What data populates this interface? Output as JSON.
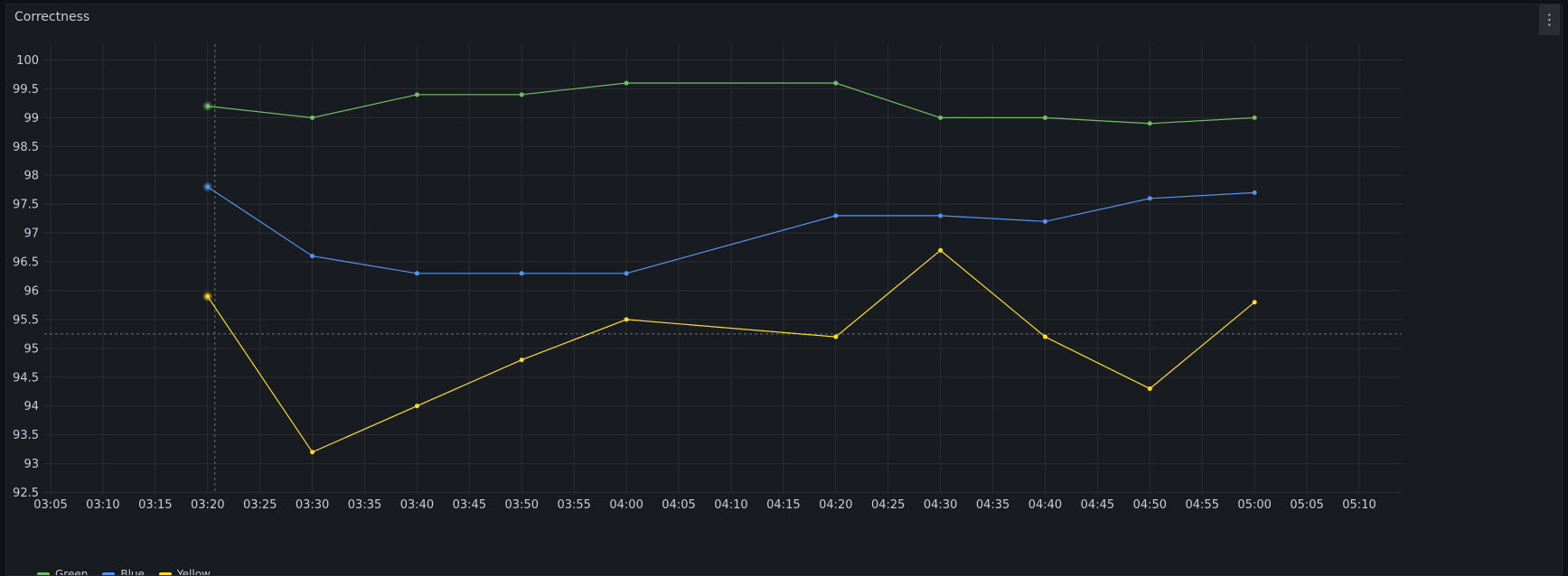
{
  "panel": {
    "title": "Correctness",
    "menu_icon": "kebab-menu-icon",
    "menu_glyph": "⋮"
  },
  "colors": {
    "background": "#181b1f",
    "grid": "#2a2d33",
    "text": "#ccccdc",
    "green": "#73bf69",
    "blue": "#5794f2",
    "yellow": "#fade2a"
  },
  "chart_data": {
    "type": "line",
    "title": "Correctness",
    "xlabel": "",
    "ylabel": "",
    "ylim": [
      92.5,
      100
    ],
    "yticks": [
      "100",
      "99.5",
      "99",
      "98.5",
      "98",
      "97.5",
      "97",
      "96.5",
      "96",
      "95.5",
      "95",
      "94.5",
      "94",
      "93.5",
      "93",
      "92.5"
    ],
    "xticks": [
      "03:05",
      "03:10",
      "03:15",
      "03:20",
      "03:25",
      "03:30",
      "03:35",
      "03:40",
      "03:45",
      "03:50",
      "03:55",
      "04:00",
      "04:05",
      "04:10",
      "04:15",
      "04:20",
      "04:25",
      "04:30",
      "04:35",
      "04:40",
      "04:45",
      "04:50",
      "04:55",
      "05:00",
      "05:05",
      "05:10"
    ],
    "x": [
      "03:20",
      "03:30",
      "03:40",
      "03:50",
      "04:00",
      "04:20",
      "04:30",
      "04:40",
      "04:50",
      "05:00"
    ],
    "grid": true,
    "crosshair": {
      "x": "03:20",
      "y": 95.25
    },
    "series": [
      {
        "name": "Green",
        "color": "#73bf69",
        "values": [
          99.2,
          99.0,
          99.4,
          99.4,
          99.6,
          99.6,
          99.0,
          99.0,
          98.9,
          99.0
        ]
      },
      {
        "name": "Blue",
        "color": "#5794f2",
        "values": [
          97.8,
          96.6,
          96.3,
          96.3,
          96.3,
          97.3,
          97.3,
          97.2,
          97.6,
          97.7
        ]
      },
      {
        "name": "Yellow",
        "color": "#fade2a",
        "values": [
          95.9,
          93.2,
          94.0,
          94.8,
          95.5,
          95.2,
          96.7,
          95.2,
          94.3,
          95.8
        ]
      }
    ]
  }
}
